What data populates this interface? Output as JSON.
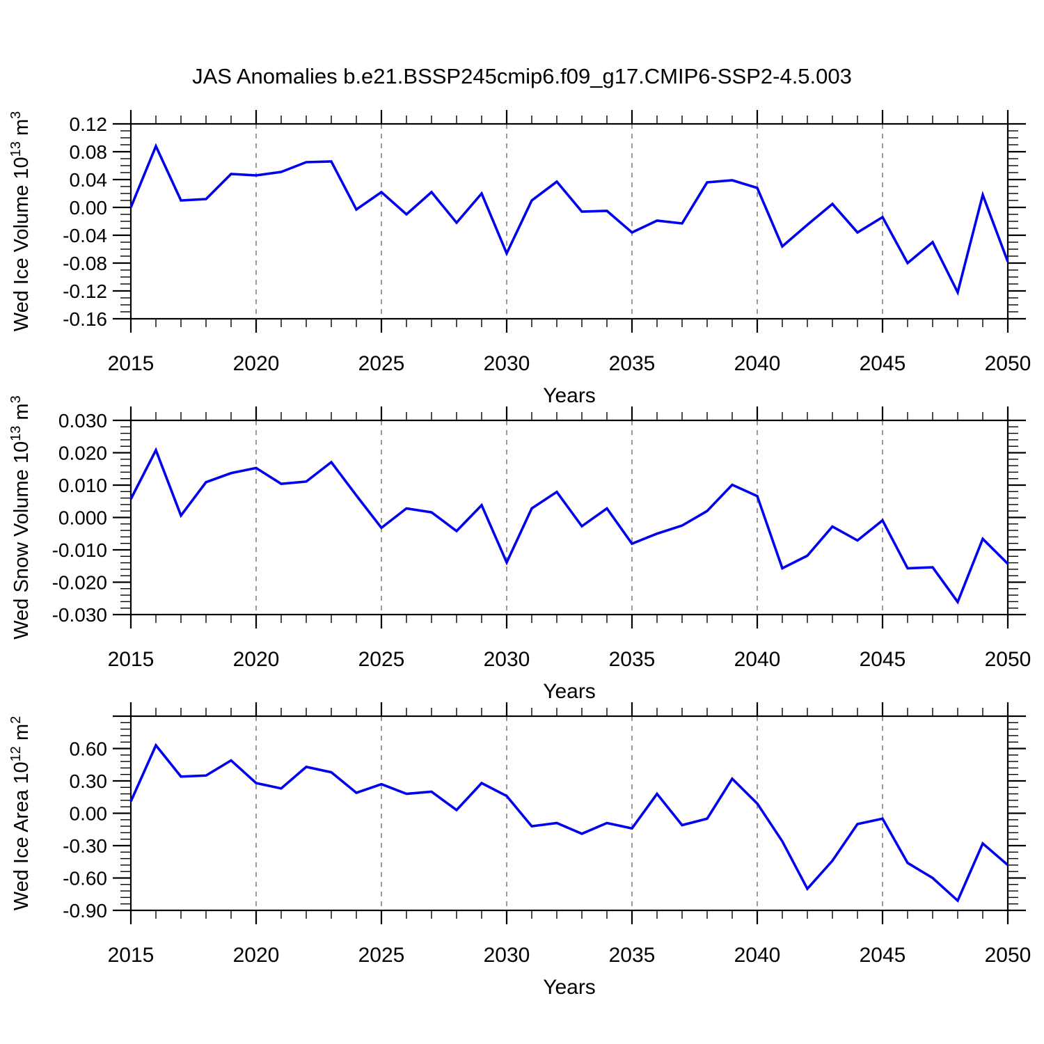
{
  "title": "JAS Anomalies b.e21.BSSP245cmip6.f09_g17.CMIP6-SSP2-4.5.003",
  "chart_data": {
    "type": "line",
    "x": {
      "start": 2015,
      "end": 2050,
      "major_ticks": [
        2015,
        2020,
        2025,
        2030,
        2035,
        2040,
        2045,
        2050
      ],
      "major_tick_labels": [
        "2015",
        "2020",
        "2025",
        "2030",
        "2035",
        "2040",
        "2045",
        "2050"
      ],
      "minor_step": 1,
      "grid_years": [
        2020,
        2025,
        2030,
        2035,
        2040,
        2045
      ],
      "label": "Years"
    },
    "years": [
      2015,
      2016,
      2017,
      2018,
      2019,
      2020,
      2021,
      2022,
      2023,
      2024,
      2025,
      2026,
      2027,
      2028,
      2029,
      2030,
      2031,
      2032,
      2033,
      2034,
      2035,
      2036,
      2037,
      2038,
      2039,
      2040,
      2041,
      2042,
      2043,
      2044,
      2045,
      2046,
      2047,
      2048,
      2049,
      2050
    ],
    "line_color": "#0000ee",
    "grid_color": "#7a7a7a",
    "axis_color": "#000000",
    "legend": "none",
    "grid": "vertical-dashed",
    "panels": [
      {
        "name": "wed-ice-volume",
        "ylabel_text": "Wed Ice Volume 10^13 m^3",
        "ylabel_segments": [
          [
            "Wed Ice Volume 10",
            false
          ],
          [
            "13",
            true
          ],
          [
            " m",
            false
          ],
          [
            "3",
            true
          ]
        ],
        "ylim": [
          -0.16,
          0.12
        ],
        "y_minor_step": 0.01,
        "yticks": [
          {
            "v": 0.12,
            "label": "0.12"
          },
          {
            "v": 0.08,
            "label": "0.08"
          },
          {
            "v": 0.04,
            "label": "0.04"
          },
          {
            "v": 0.0,
            "label": "0.00"
          },
          {
            "v": -0.04,
            "label": "-0.04"
          },
          {
            "v": -0.08,
            "label": "-0.08"
          },
          {
            "v": -0.12,
            "label": "-0.12"
          },
          {
            "v": -0.16,
            "label": "-0.16"
          }
        ],
        "values": [
          0.0,
          0.088,
          0.01,
          0.012,
          0.048,
          0.046,
          0.051,
          0.065,
          0.066,
          -0.003,
          0.022,
          -0.01,
          0.022,
          -0.022,
          0.02,
          -0.066,
          0.01,
          0.037,
          -0.006,
          -0.005,
          -0.036,
          -0.019,
          -0.023,
          0.036,
          0.039,
          0.028,
          -0.056,
          -0.025,
          0.005,
          -0.036,
          -0.014,
          -0.08,
          -0.05,
          -0.122,
          0.018,
          -0.078
        ]
      },
      {
        "name": "wed-snow-volume",
        "ylabel_text": "Wed Snow Volume 10^13 m^3",
        "ylabel_segments": [
          [
            "Wed Snow Volume 10",
            false
          ],
          [
            "13",
            true
          ],
          [
            " m",
            false
          ],
          [
            "3",
            true
          ]
        ],
        "ylim": [
          -0.03,
          0.03
        ],
        "y_minor_step": 0.002,
        "yticks": [
          {
            "v": 0.03,
            "label": "0.030"
          },
          {
            "v": 0.02,
            "label": "0.020"
          },
          {
            "v": 0.01,
            "label": "0.010"
          },
          {
            "v": 0.0,
            "label": "0.000"
          },
          {
            "v": -0.01,
            "label": "-0.010"
          },
          {
            "v": -0.02,
            "label": "-0.020"
          },
          {
            "v": -0.03,
            "label": "-0.030"
          }
        ],
        "values": [
          0.0057,
          0.0208,
          0.0006,
          0.0109,
          0.0137,
          0.0153,
          0.0104,
          0.0111,
          0.0171,
          0.0068,
          -0.0032,
          0.0028,
          0.0016,
          -0.0042,
          0.0038,
          -0.0139,
          0.0028,
          0.0079,
          -0.0027,
          0.0028,
          -0.0081,
          -0.005,
          -0.0025,
          0.002,
          0.0101,
          0.0066,
          -0.0157,
          -0.0118,
          -0.0028,
          -0.0071,
          -0.0009,
          -0.0157,
          -0.0154,
          -0.0261,
          -0.0066,
          -0.0143
        ]
      },
      {
        "name": "wed-ice-area",
        "ylabel_text": "Wed Ice Area 10^12 m^2",
        "ylabel_segments": [
          [
            "Wed Ice Area 10",
            false
          ],
          [
            "12",
            true
          ],
          [
            " m",
            false
          ],
          [
            "2",
            true
          ]
        ],
        "ylim": [
          -0.9,
          0.9
        ],
        "y_minor_step": 0.06,
        "yticks": [
          {
            "v": 0.9,
            "label": ""
          },
          {
            "v": 0.6,
            "label": "0.60"
          },
          {
            "v": 0.3,
            "label": "0.30"
          },
          {
            "v": 0.0,
            "label": "0.00"
          },
          {
            "v": -0.3,
            "label": "-0.30"
          },
          {
            "v": -0.6,
            "label": "-0.60"
          },
          {
            "v": -0.9,
            "label": "-0.90"
          }
        ],
        "values": [
          0.11,
          0.63,
          0.34,
          0.35,
          0.49,
          0.28,
          0.23,
          0.43,
          0.38,
          0.19,
          0.27,
          0.18,
          0.2,
          0.03,
          0.28,
          0.16,
          -0.12,
          -0.09,
          -0.19,
          -0.09,
          -0.14,
          0.18,
          -0.11,
          -0.05,
          0.32,
          0.09,
          -0.26,
          -0.7,
          -0.44,
          -0.1,
          -0.05,
          -0.46,
          -0.6,
          -0.81,
          -0.28,
          -0.48
        ]
      }
    ]
  }
}
